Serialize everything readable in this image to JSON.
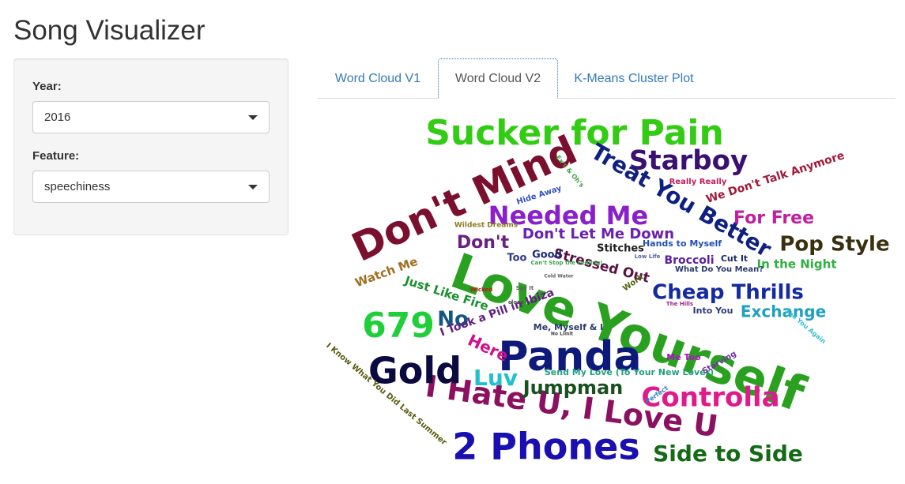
{
  "app": {
    "title": "Song Visualizer"
  },
  "sidebar": {
    "year": {
      "label": "Year:",
      "value": "2016"
    },
    "feature": {
      "label": "Feature:",
      "value": "speechiness"
    }
  },
  "tabs": [
    {
      "label": "Word Cloud V1",
      "active": false
    },
    {
      "label": "Word Cloud V2",
      "active": true
    },
    {
      "label": "K-Means Cluster Plot",
      "active": false
    }
  ],
  "colors": {
    "link": "#337ab7",
    "panel": "#f5f5f5"
  },
  "icons": {
    "dropdown": "chevron-down-icon"
  },
  "word_cloud": {
    "words": [
      {
        "text": "Love Yourself",
        "color": "#2aa020"
      },
      {
        "text": "Panda",
        "color": "#0d1a7a"
      },
      {
        "text": "Don't Mind",
        "color": "#7a0f2e"
      },
      {
        "text": "Sucker for Pain",
        "color": "#33cc14"
      },
      {
        "text": "2 Phones",
        "color": "#1a0fb0"
      },
      {
        "text": "I Hate U, I Love U",
        "color": "#8b1060"
      },
      {
        "text": "Gold",
        "color": "#0a0a40"
      },
      {
        "text": "679",
        "color": "#1fcf3a"
      },
      {
        "text": "Controlla",
        "color": "#e01a8a"
      },
      {
        "text": "Needed Me",
        "color": "#8a20cc"
      },
      {
        "text": "Starboy",
        "color": "#3a1070"
      },
      {
        "text": "Treat You Better",
        "color": "#102080"
      },
      {
        "text": "Side to Side",
        "color": "#156a15"
      },
      {
        "text": "Cheap Thrills",
        "color": "#152aa0"
      },
      {
        "text": "Pop Style",
        "color": "#3a3010"
      },
      {
        "text": "Jumpman",
        "color": "#1a5020"
      },
      {
        "text": "Luv",
        "color": "#20c0d0"
      },
      {
        "text": "No",
        "color": "#155580"
      },
      {
        "text": "For Free",
        "color": "#c020a0"
      },
      {
        "text": "Exchange",
        "color": "#20a0c0"
      },
      {
        "text": "Don't Let Me Down",
        "color": "#6a20b0"
      },
      {
        "text": "Don't",
        "color": "#6a2080"
      },
      {
        "text": "Stressed Out",
        "color": "#5a1040"
      },
      {
        "text": "Here",
        "color": "#d0108a"
      },
      {
        "text": "Just Like Fire",
        "color": "#1a9030"
      },
      {
        "text": "I Took a Pill in Ibiza",
        "color": "#602080"
      },
      {
        "text": "We Don't Talk Anymore",
        "color": "#a01a3a"
      },
      {
        "text": "Watch Me",
        "color": "#a07020"
      },
      {
        "text": "Broccoli",
        "color": "#5a20a0"
      },
      {
        "text": "In the Night",
        "color": "#30b040"
      },
      {
        "text": "Good",
        "color": "#1a2a80"
      },
      {
        "text": "Too",
        "color": "#2a3a8a"
      },
      {
        "text": "Stitches",
        "color": "#202020"
      },
      {
        "text": "Cut It",
        "color": "#1a2a60"
      },
      {
        "text": "Hands to Myself",
        "color": "#2050b0"
      },
      {
        "text": "Into You",
        "color": "#2a3a7a"
      },
      {
        "text": "Me, Myself & I",
        "color": "#2a3a6a"
      },
      {
        "text": "Send My Love (To Your New Lover)",
        "color": "#20a080"
      },
      {
        "text": "Me Too",
        "color": "#b010c0"
      },
      {
        "text": "Starving",
        "color": "#7030a0"
      },
      {
        "text": "What Do You Mean?",
        "color": "#2a3a6a"
      },
      {
        "text": "Really Really",
        "color": "#c01a5a"
      },
      {
        "text": "Hide Away",
        "color": "#3050c0"
      },
      {
        "text": "Work",
        "color": "#506010"
      },
      {
        "text": "Wildest Dreams",
        "color": "#8a7a20"
      },
      {
        "text": "See You Again",
        "color": "#30c0d0"
      },
      {
        "text": "I Know What You Did Last Summer",
        "color": "#5a5a10"
      },
      {
        "text": "Perfect",
        "color": "#3080c0"
      },
      {
        "text": "Say It",
        "color": "#606060"
      },
      {
        "text": "Low Life",
        "color": "#5060a0"
      },
      {
        "text": "Can't Stop the Feeling!",
        "color": "#40a050"
      },
      {
        "text": "The Hills",
        "color": "#a02080"
      },
      {
        "text": "Wicked",
        "color": "#c01a1a"
      },
      {
        "text": "close",
        "color": "#505050"
      },
      {
        "text": "Ex's & Oh's",
        "color": "#40a040"
      },
      {
        "text": "No Limit",
        "color": "#404040"
      },
      {
        "text": "Cold Water",
        "color": "#606060"
      }
    ]
  }
}
